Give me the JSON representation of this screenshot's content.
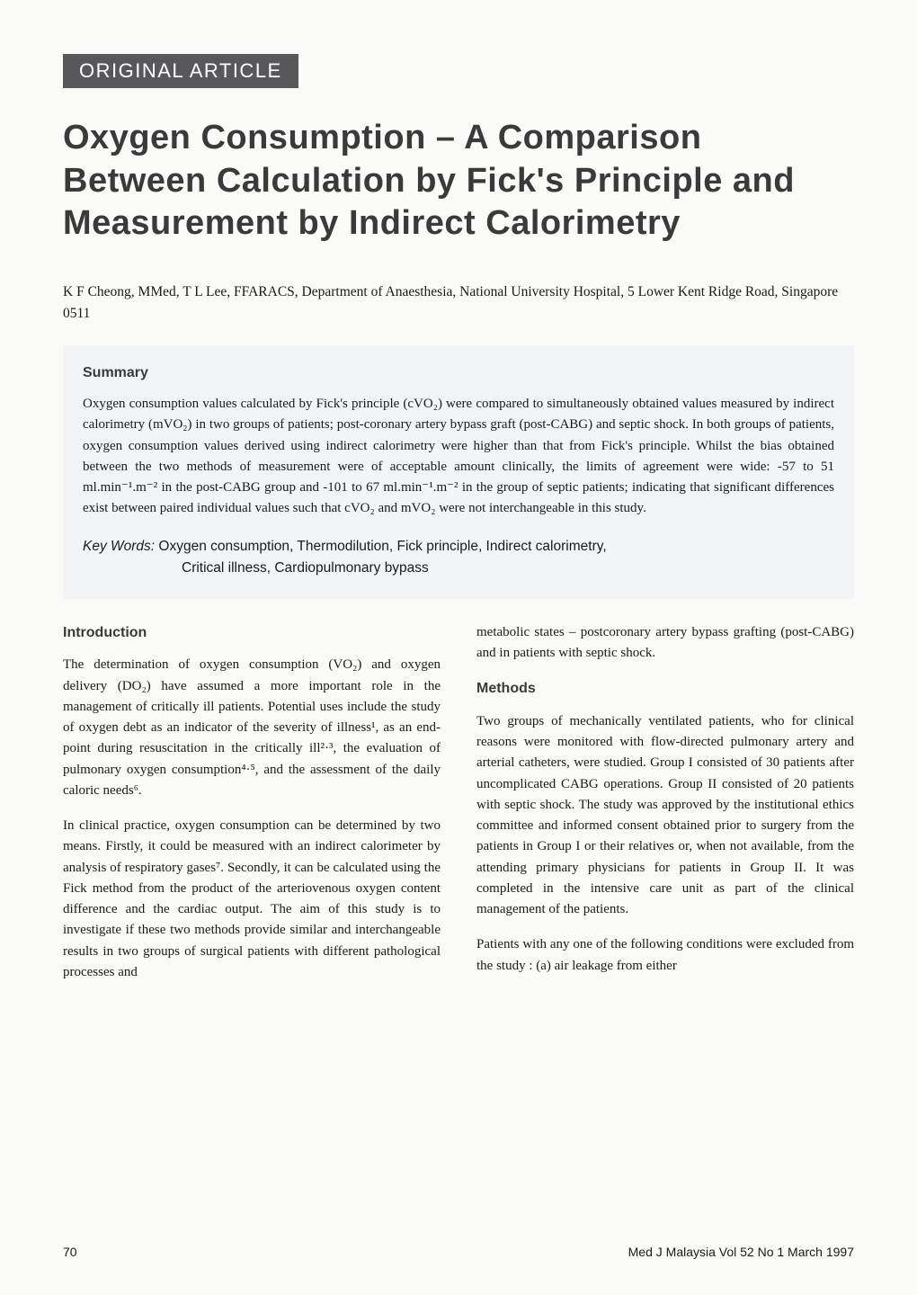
{
  "badge": "ORIGINAL ARTICLE",
  "title": "Oxygen Consumption – A Comparison Between Calculation by Fick's Principle and Measurement by Indirect Calorimetry",
  "authors": "K F Cheong, MMed, T L Lee, FFARACS, Department of Anaesthesia, National University Hospital, 5 Lower Kent Ridge Road, Singapore 0511",
  "summary": {
    "heading": "Summary",
    "text": "Oxygen consumption values calculated by Fick's principle (cVO₂) were compared to simultaneously obtained values measured by indirect calorimetry (mVO₂) in two groups of patients; post-coronary artery bypass graft (post-CABG) and septic shock. In both groups of patients, oxygen consumption values derived using indirect calorimetry were higher than that from Fick's principle. Whilst the bias obtained between the two methods of measurement were of acceptable amount clinically, the limits of agreement were wide: -57 to 51 ml.min⁻¹.m⁻² in the post-CABG group and -101 to 67 ml.min⁻¹.m⁻² in the group of septic patients; indicating that significant differences exist between paired individual values such that cVO₂ and mVO₂ were not interchangeable in this study.",
    "keywords_label": "Key Words:",
    "keywords_line1": "Oxygen consumption, Thermodilution, Fick principle, Indirect calorimetry,",
    "keywords_line2": "Critical illness, Cardiopulmonary bypass"
  },
  "introduction": {
    "heading": "Introduction",
    "p1": "The determination of oxygen consumption (VO₂) and oxygen delivery (DO₂) have assumed a more important role in the management of critically ill patients. Potential uses include the study of oxygen debt as an indicator of the severity of illness¹, as an end-point during resuscitation in the critically ill²·³, the evaluation of pulmonary oxygen consumption⁴·⁵, and the assessment of the daily caloric needs⁶.",
    "p2": "In clinical practice, oxygen consumption can be determined by two means. Firstly, it could be measured with an indirect calorimeter by analysis of respiratory gases⁷. Secondly, it can be calculated using the Fick method from the product of the arteriovenous oxygen content difference and the cardiac output. The aim of this study is to investigate if these two methods provide similar and interchangeable results in two groups of surgical patients with different pathological processes and"
  },
  "rightcol": {
    "p1": "metabolic states – postcoronary artery bypass grafting (post-CABG) and in patients with septic shock.",
    "methods_heading": "Methods",
    "p2": "Two groups of mechanically ventilated patients, who for clinical reasons were monitored with flow-directed pulmonary artery and arterial catheters, were studied. Group I consisted of 30 patients after uncomplicated CABG operations. Group II consisted of 20 patients with septic shock. The study was approved by the institutional ethics committee and informed consent obtained prior to surgery from the patients in Group I or their relatives or, when not available, from the attending primary physicians for patients in Group II. It was completed in the intensive care unit as part of the clinical management of the patients.",
    "p3": "Patients with any one of the following conditions were excluded from the study : (a) air leakage from either"
  },
  "footer": {
    "page": "70",
    "citation": "Med J Malaysia Vol 52 No 1 March 1997"
  },
  "styles": {
    "badge_bg": "#58585a",
    "badge_fg": "#ffffff",
    "summary_bg": "#f2f4f6",
    "title_color": "#3a3a3a",
    "body_color": "#1a1a1a",
    "page_bg": "#fafaf9",
    "title_fontsize": 38,
    "body_fontsize": 15,
    "heading_fontsize": 16,
    "badge_fontsize": 22
  }
}
